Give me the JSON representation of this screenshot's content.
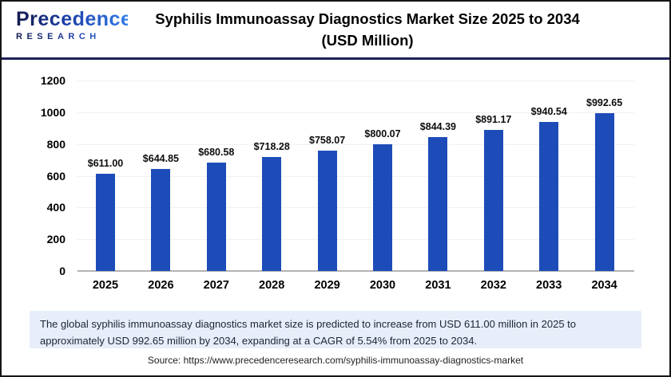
{
  "logo": {
    "line1": "Precedence",
    "line2": "RESEARCH"
  },
  "header": {
    "title_line1": "Syphilis Immunoassay Diagnostics Market Size 2025 to 2034",
    "title_line2": "(USD Million)"
  },
  "chart_data": {
    "type": "bar",
    "title": "Syphilis Immunoassay Diagnostics Market Size 2025 to 2034 (USD Million)",
    "categories": [
      "2025",
      "2026",
      "2027",
      "2028",
      "2029",
      "2030",
      "2031",
      "2032",
      "2033",
      "2034"
    ],
    "values": [
      611.0,
      644.85,
      680.58,
      718.28,
      758.07,
      800.07,
      844.39,
      891.17,
      940.54,
      992.65
    ],
    "value_labels": [
      "$611.00",
      "$644.85",
      "$680.58",
      "$718.28",
      "$758.07",
      "$800.07",
      "$844.39",
      "$891.17",
      "$940.54",
      "$992.65"
    ],
    "xlabel": "",
    "ylabel": "",
    "ylim": [
      0,
      1200
    ],
    "ytick_step": 200,
    "grid": true,
    "legend": false,
    "bar_color": "#1d4cb8"
  },
  "summary": {
    "text": "The global syphilis immunoassay diagnostics market size is predicted to increase from USD 611.00 million in 2025 to approximately USD 992.65 million by 2034, expanding at a CAGR of 5.54% from 2025 to 2034."
  },
  "source": {
    "text": "Source: https://www.precedenceresearch.com/syphilis-immunoassay-diagnostics-market"
  },
  "colors": {
    "bar": "#1d4cb8",
    "header_divider": "#1e2158",
    "summary_bg": "#e7eef9",
    "gridline": "#f1f1f1",
    "axis_line": "#b3b3b3"
  }
}
